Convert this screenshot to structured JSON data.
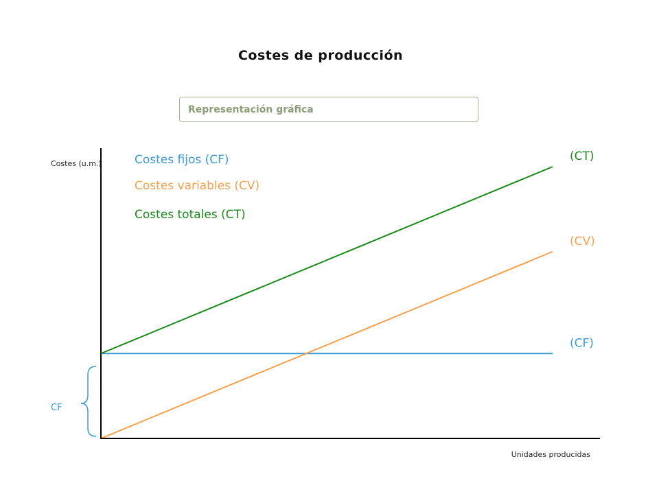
{
  "title": "Costes de producción",
  "subtitle": "Representación gráfica",
  "colors": {
    "cf": "#3a9bd5",
    "cv": "#f5a04b",
    "ct": "#1a8a1a",
    "axis": "#000000"
  },
  "chart_data": {
    "type": "line",
    "ylabel": "Costes (u.m.)",
    "xlabel": "Unidades producidas",
    "xlim": [
      0,
      10
    ],
    "ylim": [
      0,
      10
    ],
    "grid": false,
    "legend": {
      "placement": "top-left",
      "entries": [
        "Costes fijos (CF)",
        "Costes variables (CV)",
        "Costes totales (CT)"
      ]
    },
    "series": [
      {
        "key": "cf",
        "label": "(CF)",
        "x": [
          0,
          10
        ],
        "y": [
          2.5,
          2.5
        ]
      },
      {
        "key": "cv",
        "label": "(CV)",
        "x": [
          0,
          10
        ],
        "y": [
          0,
          5.5
        ]
      },
      {
        "key": "ct",
        "label": "(CT)",
        "x": [
          0,
          10
        ],
        "y": [
          2.5,
          8
        ]
      }
    ],
    "annotations": [
      {
        "text": "CF",
        "type": "brace"
      }
    ]
  }
}
